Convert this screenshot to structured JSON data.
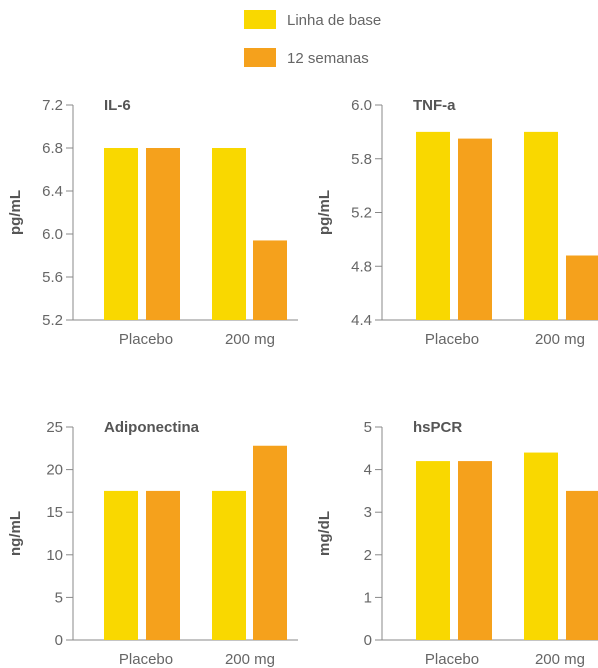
{
  "legend": [
    {
      "label": "Linha de base",
      "color": "#F9D800"
    },
    {
      "label": "12 semanas",
      "color": "#F5A11C"
    }
  ],
  "chart_data": [
    {
      "type": "bar",
      "title": "IL-6",
      "ylabel": "pg/mL",
      "categories": [
        "Placebo",
        "200 mg"
      ],
      "yticks": [
        "5.2",
        "5.6",
        "6.0",
        "6.4",
        "6.8",
        "7.2"
      ],
      "ylim": [
        5.2,
        7.2
      ],
      "series": [
        {
          "name": "Linha de base",
          "values": [
            6.8,
            6.8
          ]
        },
        {
          "name": "12 semanas",
          "values": [
            6.8,
            5.94
          ]
        }
      ]
    },
    {
      "type": "bar",
      "title": "TNF-a",
      "ylabel": "pg/mL",
      "categories": [
        "Placebo",
        "200 mg"
      ],
      "yticks": [
        "4.4",
        "4.8",
        "5.2",
        "5.8",
        "6.0"
      ],
      "ylim": [
        4.4,
        6.0
      ],
      "series": [
        {
          "name": "Linha de base",
          "values": [
            5.8,
            5.8
          ]
        },
        {
          "name": "12 semanas",
          "values": [
            5.75,
            4.88
          ]
        }
      ]
    },
    {
      "type": "bar",
      "title": "Adiponectina",
      "ylabel": "ng/mL",
      "categories": [
        "Placebo",
        "200 mg"
      ],
      "yticks": [
        "0",
        "5",
        "10",
        "15",
        "20",
        "25"
      ],
      "ylim": [
        0,
        25
      ],
      "series": [
        {
          "name": "Linha de base",
          "values": [
            17.5,
            17.5
          ]
        },
        {
          "name": "12 semanas",
          "values": [
            17.5,
            22.8
          ]
        }
      ]
    },
    {
      "type": "bar",
      "title": "hsPCR",
      "ylabel": "mg/dL",
      "categories": [
        "Placebo",
        "200 mg"
      ],
      "yticks": [
        "0",
        "1",
        "2",
        "3",
        "4",
        "5"
      ],
      "ylim": [
        0,
        5
      ],
      "series": [
        {
          "name": "Linha de base",
          "values": [
            4.2,
            4.4
          ]
        },
        {
          "name": "12 semanas",
          "values": [
            4.2,
            3.5
          ]
        }
      ]
    }
  ]
}
